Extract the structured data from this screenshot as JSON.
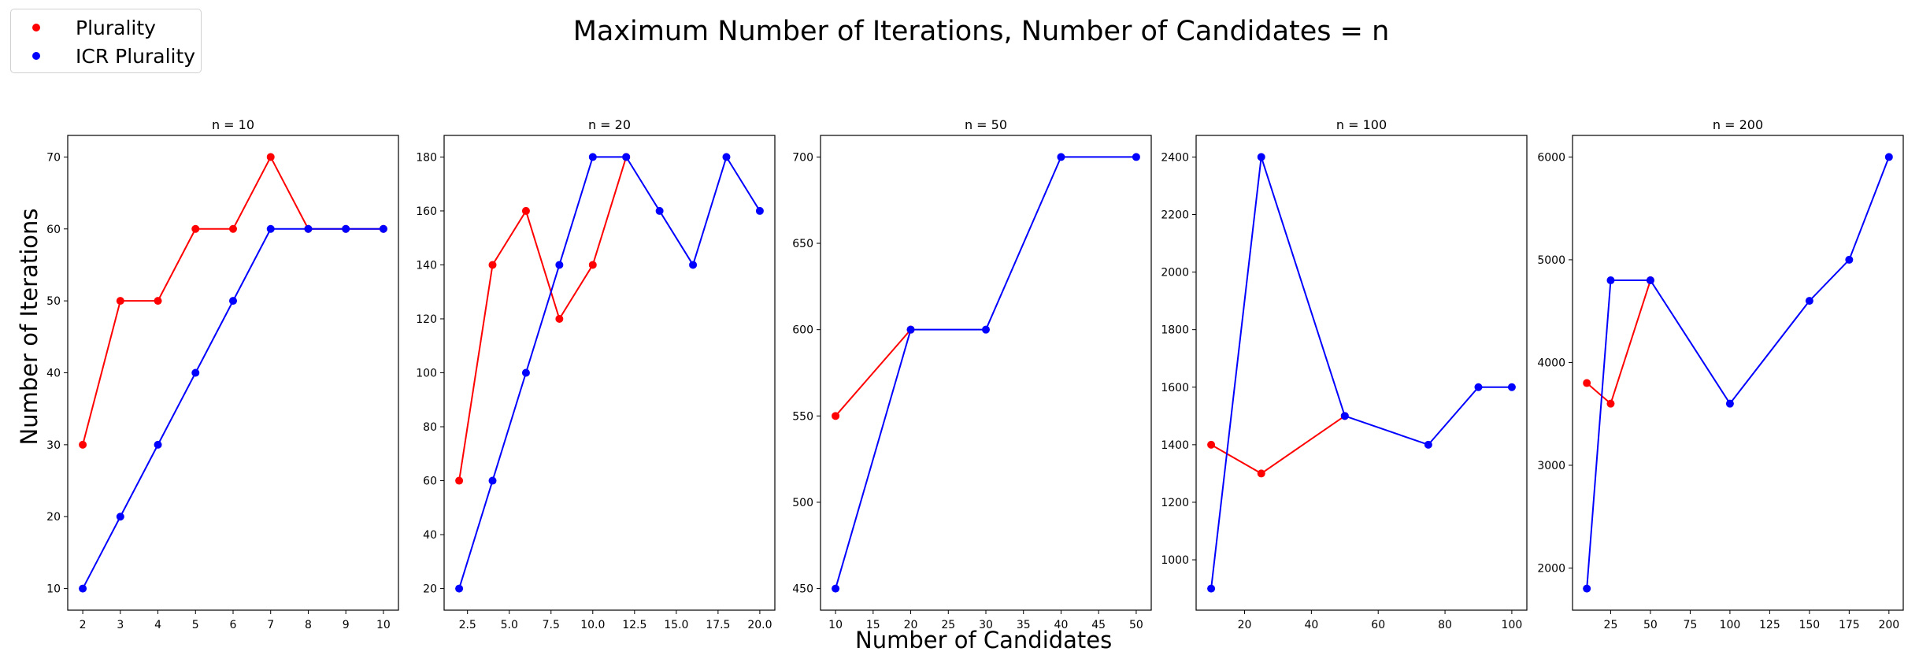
{
  "figure": {
    "title": "Maximum Number of Iterations, Number of Candidates = n",
    "xlabel": "Number of Candidates",
    "ylabel": "Number of Iterations"
  },
  "legend": {
    "items": [
      {
        "label": "Plurality",
        "color": "#ff0000"
      },
      {
        "label": "ICR Plurality",
        "color": "#0000ff"
      }
    ]
  },
  "chart_data": [
    {
      "type": "line",
      "title": "n = 10",
      "xlim": [
        1.6,
        10.4
      ],
      "ylim": [
        7,
        73
      ],
      "xticks": [
        2,
        3,
        4,
        5,
        6,
        7,
        8,
        9,
        10
      ],
      "xtick_labels": [
        "2",
        "3",
        "4",
        "5",
        "6",
        "7",
        "8",
        "9",
        "10"
      ],
      "yticks": [
        10,
        20,
        30,
        40,
        50,
        60,
        70
      ],
      "ytick_labels": [
        "10",
        "20",
        "30",
        "40",
        "50",
        "60",
        "70"
      ],
      "series": [
        {
          "name": "Plurality",
          "color": "#ff0000",
          "x": [
            2,
            3,
            4,
            5,
            6,
            7,
            8,
            9,
            10
          ],
          "y": [
            30,
            50,
            50,
            60,
            60,
            70,
            60,
            60,
            60
          ]
        },
        {
          "name": "ICR Plurality",
          "color": "#0000ff",
          "x": [
            2,
            3,
            4,
            5,
            6,
            7,
            8,
            9,
            10
          ],
          "y": [
            10,
            20,
            30,
            40,
            50,
            60,
            60,
            60,
            60
          ]
        }
      ]
    },
    {
      "type": "line",
      "title": "n = 20",
      "xlim": [
        1.1,
        20.9
      ],
      "ylim": [
        12,
        188
      ],
      "xticks": [
        2.5,
        5.0,
        7.5,
        10.0,
        12.5,
        15.0,
        17.5,
        20.0
      ],
      "xtick_labels": [
        "2.5",
        "5.0",
        "7.5",
        "10.0",
        "12.5",
        "15.0",
        "17.5",
        "20.0"
      ],
      "yticks": [
        20,
        40,
        60,
        80,
        100,
        120,
        140,
        160,
        180
      ],
      "ytick_labels": [
        "20",
        "40",
        "60",
        "80",
        "100",
        "120",
        "140",
        "160",
        "180"
      ],
      "series": [
        {
          "name": "Plurality",
          "color": "#ff0000",
          "x": [
            2,
            4,
            6,
            8,
            10,
            12
          ],
          "y": [
            60,
            140,
            160,
            120,
            140,
            180
          ]
        },
        {
          "name": "ICR Plurality",
          "color": "#0000ff",
          "x": [
            2,
            4,
            6,
            8,
            10,
            12,
            14,
            16,
            18,
            20
          ],
          "y": [
            20,
            60,
            100,
            140,
            180,
            180,
            160,
            140,
            180,
            160
          ]
        }
      ]
    },
    {
      "type": "line",
      "title": "n = 50",
      "xlim": [
        8,
        52
      ],
      "ylim": [
        437.5,
        712.5
      ],
      "xticks": [
        10,
        15,
        20,
        25,
        30,
        35,
        40,
        45,
        50
      ],
      "xtick_labels": [
        "10",
        "15",
        "20",
        "25",
        "30",
        "35",
        "40",
        "45",
        "50"
      ],
      "yticks": [
        450,
        500,
        550,
        600,
        650,
        700
      ],
      "ytick_labels": [
        "450",
        "500",
        "550",
        "600",
        "650",
        "700"
      ],
      "series": [
        {
          "name": "Plurality",
          "color": "#ff0000",
          "x": [
            10,
            20
          ],
          "y": [
            550,
            600
          ]
        },
        {
          "name": "ICR Plurality",
          "color": "#0000ff",
          "x": [
            10,
            20,
            30,
            40,
            50
          ],
          "y": [
            450,
            600,
            600,
            700,
            700
          ]
        }
      ]
    },
    {
      "type": "line",
      "title": "n = 100",
      "xlim": [
        5.5,
        104.5
      ],
      "ylim": [
        825,
        2475
      ],
      "xticks": [
        20,
        40,
        60,
        80,
        100
      ],
      "xtick_labels": [
        "20",
        "40",
        "60",
        "80",
        "100"
      ],
      "yticks": [
        1000,
        1200,
        1400,
        1600,
        1800,
        2000,
        2200,
        2400
      ],
      "ytick_labels": [
        "1000",
        "1200",
        "1400",
        "1600",
        "1800",
        "2000",
        "2200",
        "2400"
      ],
      "series": [
        {
          "name": "Plurality",
          "color": "#ff0000",
          "x": [
            10,
            25,
            50
          ],
          "y": [
            1400,
            1300,
            1500
          ]
        },
        {
          "name": "ICR Plurality",
          "color": "#0000ff",
          "x": [
            10,
            25,
            50,
            75,
            90,
            100
          ],
          "y": [
            900,
            2400,
            1500,
            1400,
            1600,
            1600
          ]
        }
      ]
    },
    {
      "type": "line",
      "title": "n = 200",
      "xlim": [
        1,
        209
      ],
      "ylim": [
        1590,
        6210
      ],
      "xticks": [
        25,
        50,
        75,
        100,
        125,
        150,
        175,
        200
      ],
      "xtick_labels": [
        "25",
        "50",
        "75",
        "100",
        "125",
        "150",
        "175",
        "200"
      ],
      "yticks": [
        2000,
        3000,
        4000,
        5000,
        6000
      ],
      "ytick_labels": [
        "2000",
        "3000",
        "4000",
        "5000",
        "6000"
      ],
      "series": [
        {
          "name": "Plurality",
          "color": "#ff0000",
          "x": [
            10,
            25,
            50
          ],
          "y": [
            3800,
            3600,
            4800
          ]
        },
        {
          "name": "ICR Plurality",
          "color": "#0000ff",
          "x": [
            10,
            25,
            50,
            100,
            150,
            175,
            200
          ],
          "y": [
            1800,
            4800,
            4800,
            3600,
            4600,
            5000,
            6000
          ]
        }
      ]
    }
  ]
}
